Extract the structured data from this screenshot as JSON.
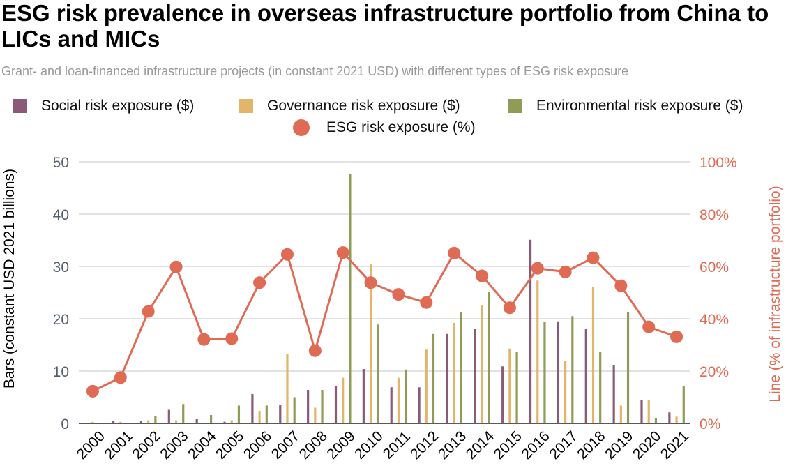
{
  "chart_data": {
    "type": "bar",
    "title": "ESG risk prevalence in overseas infrastructure portfolio from China to LICs and MICs",
    "subtitle": "Grant- and loan-financed infrastructure projects (in constant 2021 USD) with different types of ESG risk exposure",
    "ylabel": "Bars (constant USD 2021 billions)",
    "y2label": "Line (% of infrastructure portfolio)",
    "ylim": [
      0,
      50
    ],
    "y2lim": [
      0,
      100
    ],
    "yticks": [
      "0",
      "10",
      "20",
      "30",
      "40",
      "50"
    ],
    "y2ticks": [
      "0%",
      "20%",
      "40%",
      "60%",
      "80%",
      "100%"
    ],
    "categories": [
      "2000",
      "2001",
      "2002",
      "2003",
      "2004",
      "2005",
      "2006",
      "2007",
      "2008",
      "2009",
      "2010",
      "2011",
      "2012",
      "2013",
      "2014",
      "2015",
      "2016",
      "2017",
      "2018",
      "2019",
      "2020",
      "2021"
    ],
    "series": [
      {
        "name": "Social risk exposure ($)",
        "kind": "bar",
        "color": "#8b5a78",
        "values": [
          0.1,
          0.5,
          0.5,
          2.6,
          0.8,
          0.3,
          5.6,
          3.5,
          6.4,
          7.2,
          10.4,
          6.9,
          6.9,
          17.1,
          18.1,
          10.9,
          35.1,
          19.5,
          18.1,
          11.2,
          4.5,
          2.1
        ]
      },
      {
        "name": "Governance risk exposure ($)",
        "kind": "bar",
        "color": "#e3b56b",
        "values": [
          0.3,
          0.3,
          0.6,
          0.6,
          0.1,
          0.6,
          2.4,
          13.3,
          3.0,
          8.7,
          30.4,
          8.7,
          14.1,
          19.2,
          22.6,
          14.3,
          27.3,
          12.0,
          26.1,
          3.4,
          4.5,
          1.3
        ]
      },
      {
        "name": "Environmental risk exposure ($)",
        "kind": "bar",
        "color": "#8f9b57",
        "values": [
          0.1,
          0.1,
          1.4,
          3.7,
          1.6,
          3.4,
          3.4,
          5.0,
          6.4,
          47.7,
          18.9,
          10.3,
          17.1,
          21.3,
          25.1,
          13.6,
          19.4,
          20.5,
          13.6,
          21.3,
          1.0,
          7.2
        ]
      },
      {
        "name": "ESG risk exposure (%)",
        "kind": "line",
        "color": "#e06b55",
        "values": [
          12.3,
          17.5,
          42.8,
          59.8,
          32.1,
          32.4,
          53.8,
          64.6,
          27.8,
          65.3,
          53.8,
          49.3,
          46.2,
          65.1,
          56.4,
          44.2,
          59.3,
          57.9,
          63.3,
          52.6,
          36.9,
          33.1
        ]
      }
    ],
    "legend": "top",
    "grid": true,
    "colors": {
      "axis_left": "#555f6b",
      "axis_right": "#e06b55",
      "grid": "#bfc5cc",
      "subtitle": "#999999"
    }
  }
}
